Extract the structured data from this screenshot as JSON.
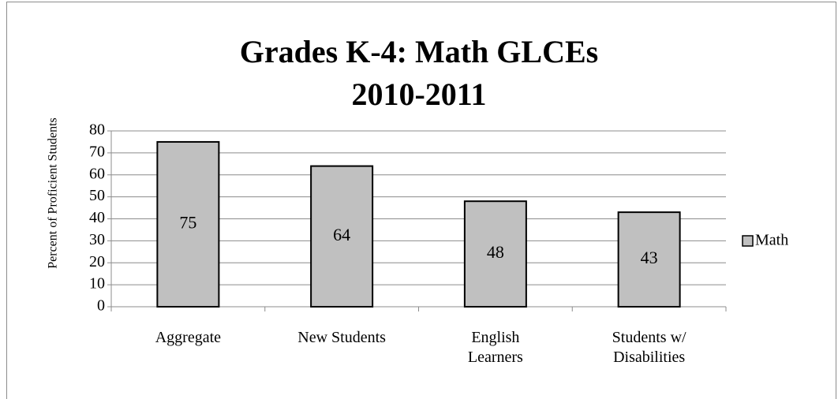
{
  "chart_data": {
    "type": "bar",
    "title": "Grades K-4: Math GLCEs",
    "subtitle": "2010-2011",
    "y_label": "Percent of Proficient Students",
    "categories": [
      "Aggregate",
      "New Students",
      "English\nLearners",
      "Students w/\nDisabilities"
    ],
    "series": [
      {
        "name": "Math",
        "color": "#c0c0c0",
        "values": [
          75,
          64,
          48,
          43
        ]
      }
    ],
    "ylim": [
      0,
      80
    ],
    "yticks": [
      0,
      10,
      20,
      30,
      40,
      50,
      60,
      70,
      80
    ],
    "grid": true,
    "legend": "right"
  }
}
